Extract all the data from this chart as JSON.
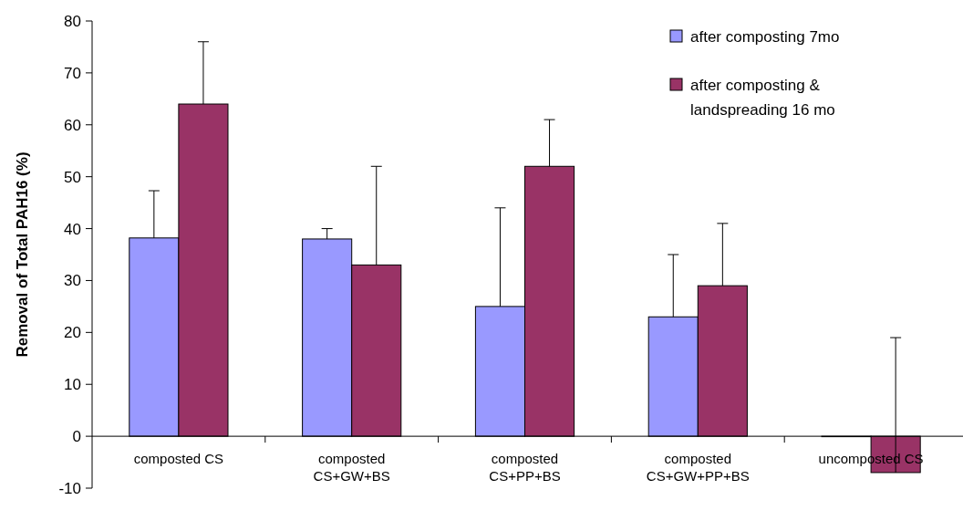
{
  "chart_data": {
    "type": "bar",
    "ylabel": "Removal of Total PAH16 (%)",
    "categories": [
      "composted CS",
      "composted\nCS+GW+BS",
      "composted\nCS+PP+BS",
      "composted\nCS+GW+PP+BS",
      "uncomposted CS"
    ],
    "series": [
      {
        "name": "after composting 7mo",
        "color": "#9999ff",
        "values": [
          38.2,
          38,
          25,
          23,
          0
        ],
        "errors": [
          [
            38.2,
            47.3
          ],
          [
            38,
            40
          ],
          [
            25,
            44
          ],
          [
            23,
            35
          ],
          null
        ]
      },
      {
        "name": "after composting &\nlandspreading 16 mo",
        "color": "#993366",
        "values": [
          64,
          33,
          52,
          29,
          -7
        ],
        "errors": [
          [
            64,
            76
          ],
          [
            33,
            52
          ],
          [
            52,
            61
          ],
          [
            29,
            41
          ],
          [
            -7,
            19
          ]
        ]
      }
    ],
    "ylim": [
      -10,
      80
    ],
    "yticks": [
      -10,
      0,
      10,
      20,
      30,
      40,
      50,
      60,
      70,
      80
    ],
    "grid": false,
    "legend": "top right"
  }
}
